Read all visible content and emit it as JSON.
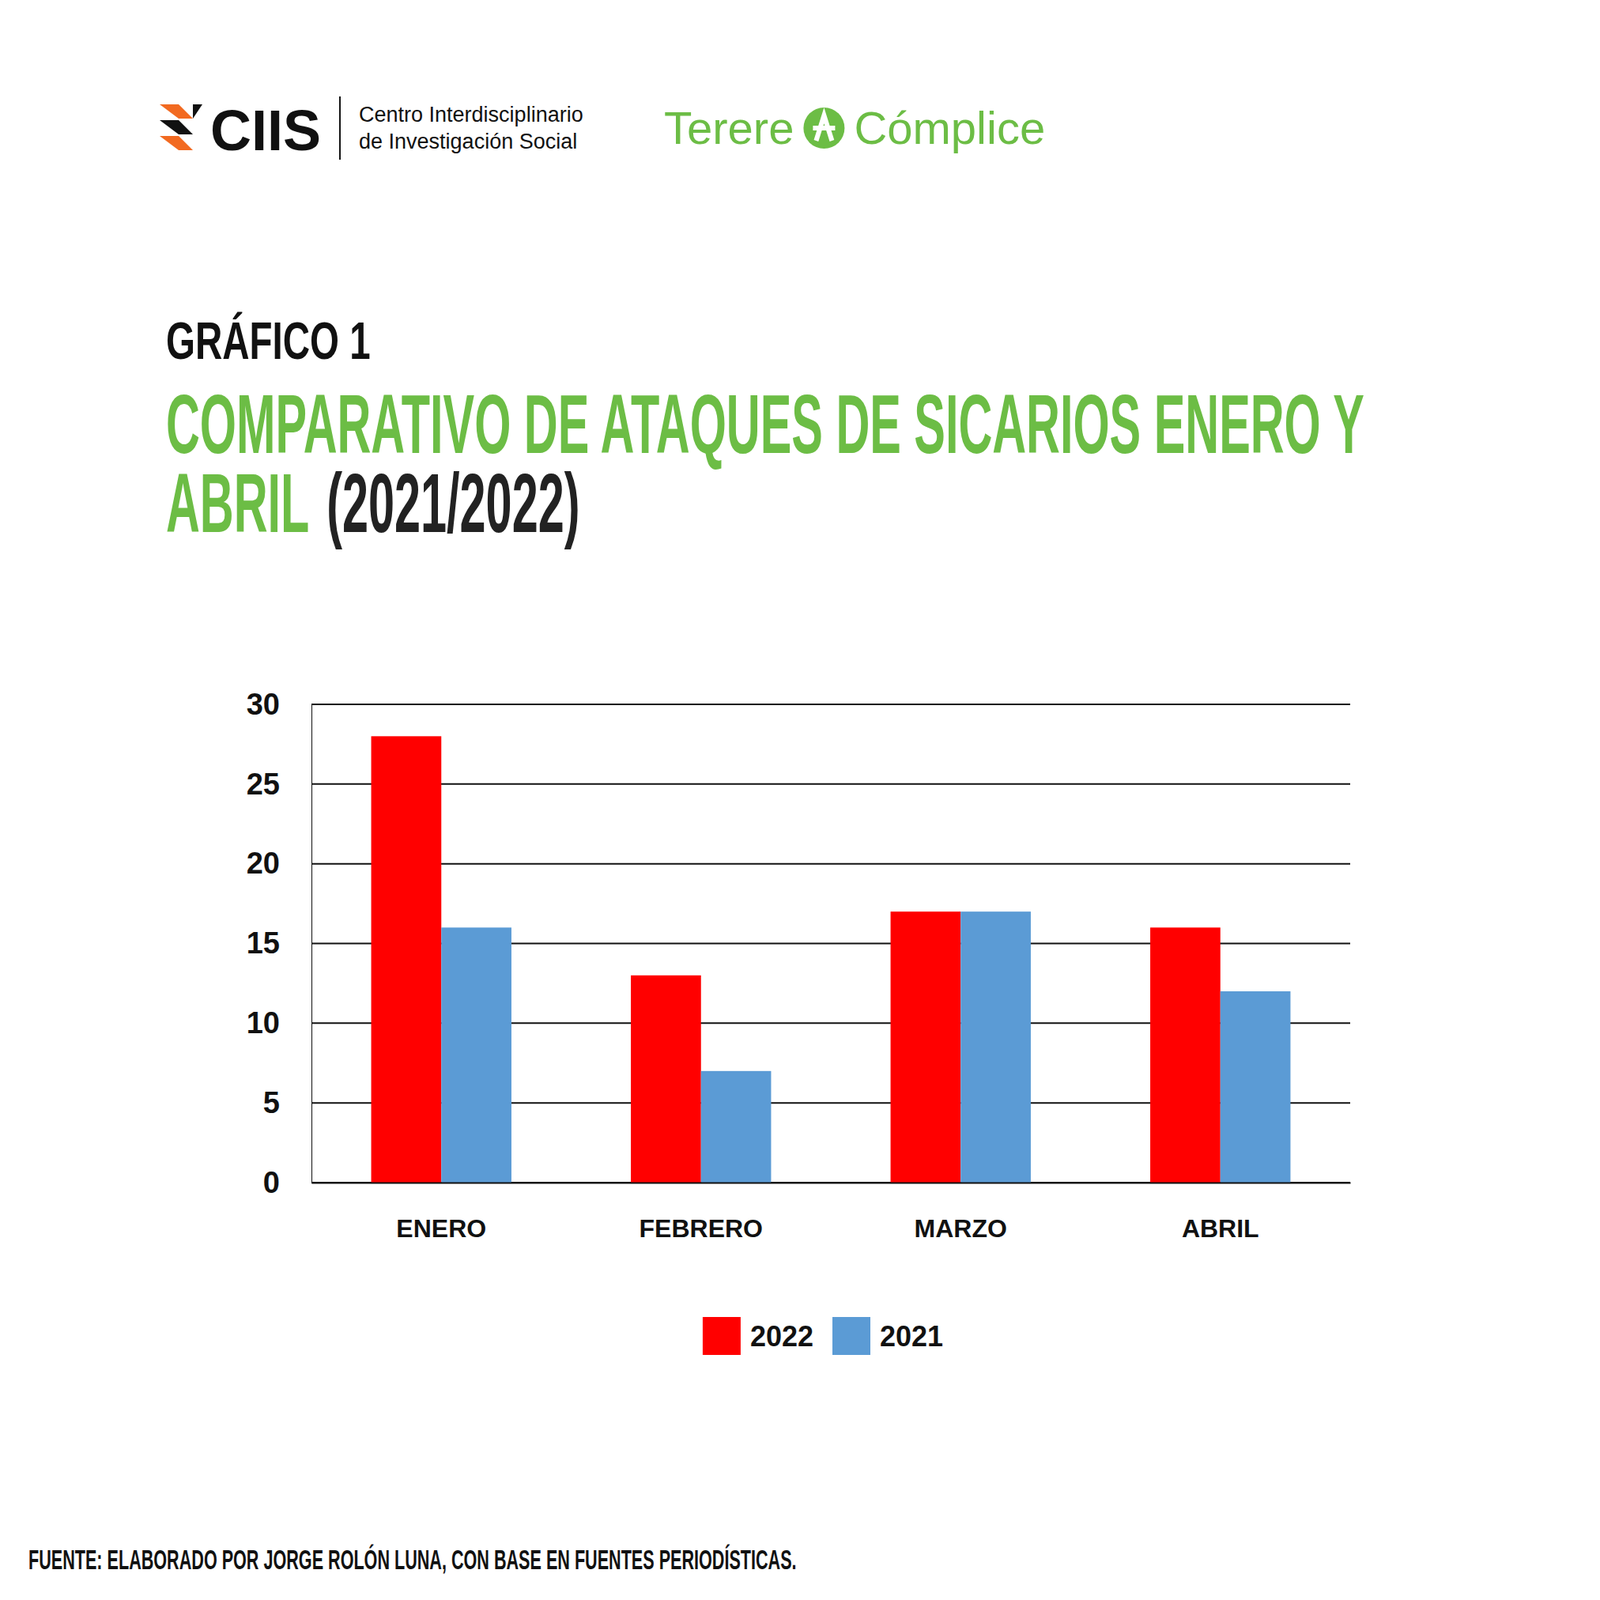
{
  "header": {
    "logo": "CIIS",
    "organization": [
      "Centro Interdisciplinario",
      "de Investigación Social"
    ],
    "partner": [
      "Terere",
      "Cómplice"
    ],
    "chart_label": "GRÁFICO 1"
  },
  "chart_data": {
    "type": "bar",
    "title": "COMPARATIVO DE ATAQUES DE SICARIOS ENERO Y ABRIL",
    "subtitle": "(2021/2022)",
    "categories": [
      "ENERO",
      "FEBRERO",
      "MARZO",
      "ABRIL"
    ],
    "series": [
      {
        "name": "2022",
        "color": "#ff0000",
        "values": [
          28,
          13,
          17,
          16
        ]
      },
      {
        "name": "2021",
        "color": "#5b9bd5",
        "values": [
          16,
          7,
          17,
          12
        ]
      }
    ],
    "ylim": [
      0,
      30
    ],
    "yticks": [
      0,
      5,
      10,
      15,
      20,
      25,
      30
    ],
    "grid": true,
    "legend": "bottom"
  },
  "source": "FUENTE: ELABORADO POR JORGE ROLÓN LUNA, CON BASE EN FUENTES PERIODÍSTICAS."
}
